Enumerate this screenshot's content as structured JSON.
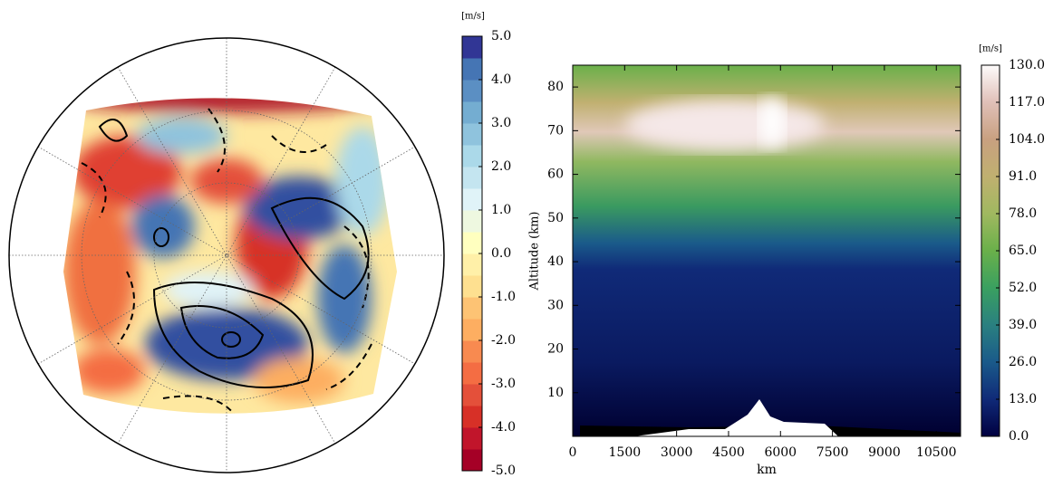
{
  "chart_data": [
    {
      "type": "polar-map",
      "colorbar": {
        "label": "[m/s]",
        "lim": [
          -5,
          5
        ],
        "colors": [
          "#a50026",
          "#c1152b",
          "#d73027",
          "#e4503a",
          "#f46d43",
          "#f88a50",
          "#fdae61",
          "#fdc374",
          "#fee090",
          "#fff0a8",
          "#ffffbf",
          "#eef8e0",
          "#e0f3f8",
          "#c4e5f0",
          "#abd9e9",
          "#8fc3dd",
          "#74add1",
          "#5b8fc3",
          "#4575b4",
          "#313695"
        ],
        "ticks": [
          {
            "value": 5,
            "label": "5.0"
          },
          {
            "value": 4,
            "label": "4.0"
          },
          {
            "value": 3,
            "label": "3.0"
          },
          {
            "value": 2,
            "label": "2.0"
          },
          {
            "value": 1,
            "label": "1.0"
          },
          {
            "value": 0,
            "label": "0.0"
          },
          {
            "value": -1,
            "label": "-1.0"
          },
          {
            "value": -2,
            "label": "-2.0"
          },
          {
            "value": -3,
            "label": "-3.0"
          },
          {
            "value": -4,
            "label": "-4.0"
          },
          {
            "value": -5,
            "label": "-5.0"
          }
        ]
      }
    },
    {
      "type": "heatmap",
      "xlabel": "km",
      "ylabel": "Altitude (km)",
      "xlim": [
        0,
        11200
      ],
      "ylim": [
        0,
        85
      ],
      "xticks": [
        0,
        1500,
        3000,
        4500,
        6000,
        7500,
        9000,
        10500
      ],
      "yticks": [
        10,
        20,
        30,
        40,
        50,
        60,
        70,
        80
      ],
      "colorbar": {
        "label": "[m/s]",
        "lim": [
          0,
          130
        ],
        "colors": [
          "#000040",
          "#102a78",
          "#1a5a8a",
          "#2a8080",
          "#3aa060",
          "#6ab04a",
          "#a0b860",
          "#c0b070",
          "#c8a080",
          "#e0c0b8",
          "#fdfbfb"
        ],
        "ticks": [
          {
            "value": 0,
            "label": "0.0"
          },
          {
            "value": 13,
            "label": "13.0"
          },
          {
            "value": 26,
            "label": "26.0"
          },
          {
            "value": 39,
            "label": "39.0"
          },
          {
            "value": 52,
            "label": "52.0"
          },
          {
            "value": 65,
            "label": "65.0"
          },
          {
            "value": 78,
            "label": "78.0"
          },
          {
            "value": 91,
            "label": "91.0"
          },
          {
            "value": 104,
            "label": "104.0"
          },
          {
            "value": 117,
            "label": "117.0"
          },
          {
            "value": 130,
            "label": "130.0"
          }
        ]
      }
    }
  ]
}
